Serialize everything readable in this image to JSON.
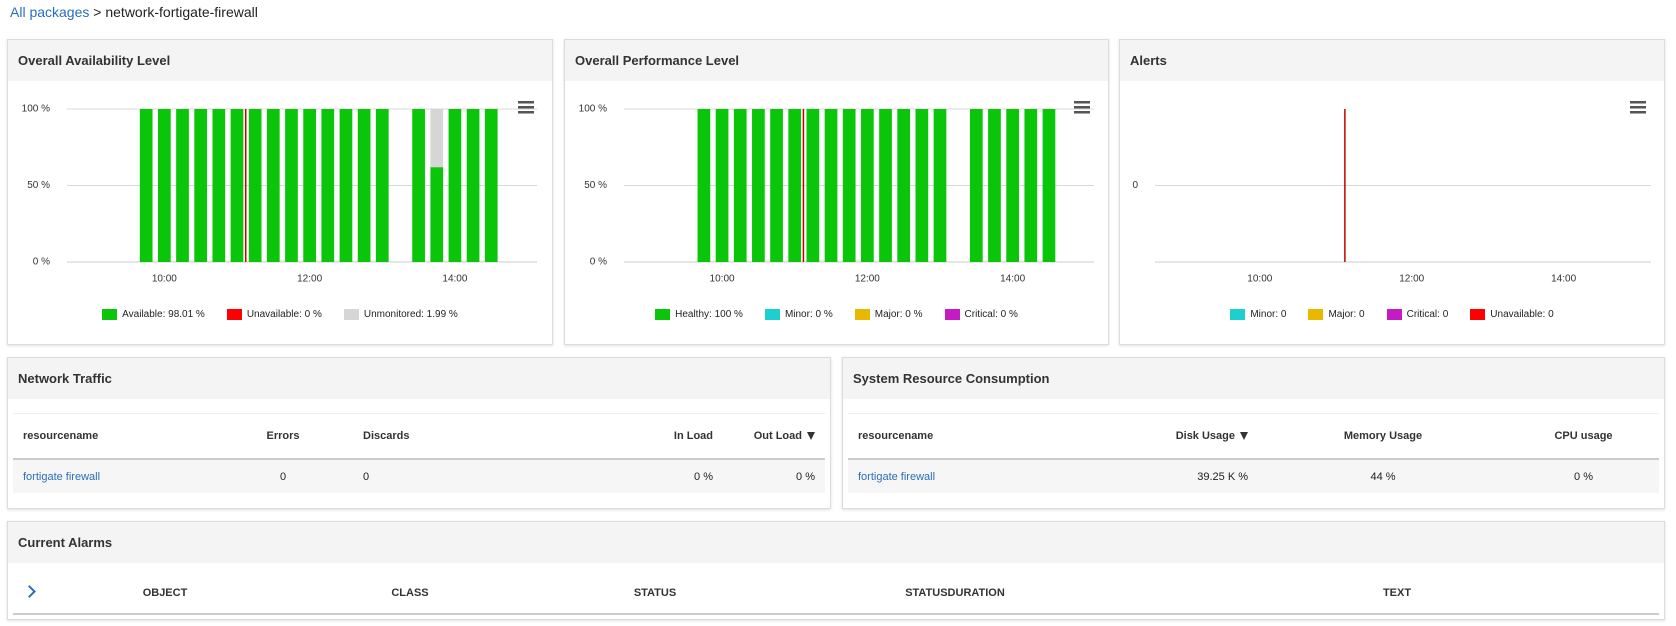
{
  "breadcrumb": {
    "link": "All packages",
    "separator": ">",
    "current": "network-fortigate-firewall"
  },
  "chart_data": [
    {
      "type": "bar",
      "title": "Overall Availability Level",
      "stacked": true,
      "grid": true,
      "x": [
        9.75,
        10,
        10.25,
        10.5,
        10.75,
        11,
        11.25,
        11.5,
        11.75,
        12,
        12.25,
        12.5,
        12.75,
        13,
        13.5,
        13.75,
        14,
        14.25,
        14.5
      ],
      "series": [
        {
          "name": "Available: 98.01 %",
          "color": "#0bc50b",
          "values": [
            100,
            100,
            100,
            100,
            100,
            100,
            100,
            100,
            100,
            100,
            100,
            100,
            100,
            100,
            100,
            62,
            100,
            100,
            100
          ]
        },
        {
          "name": "Unavailable: 0 %",
          "color": "#ff0000",
          "values": [
            0,
            0,
            0,
            0,
            0,
            0,
            0,
            0,
            0,
            0,
            0,
            0,
            0,
            0,
            0,
            0,
            0,
            0,
            0
          ]
        },
        {
          "name": "Unmonitored: 1.99 %",
          "color": "#d6d6d6",
          "values": [
            0,
            0,
            0,
            0,
            0,
            0,
            0,
            0,
            0,
            0,
            0,
            0,
            0,
            0,
            0,
            38,
            0,
            0,
            0
          ]
        }
      ],
      "xlim": [
        8.66,
        15.13
      ],
      "xticks": [
        {
          "value": 10,
          "label": "10:00"
        },
        {
          "value": 12,
          "label": "12:00"
        },
        {
          "value": 14,
          "label": "14:00"
        }
      ],
      "ylim": [
        0,
        100
      ],
      "yticks": [
        {
          "value": 0,
          "label": "0 %"
        },
        {
          "value": 50,
          "label": "50 %"
        },
        {
          "value": 100,
          "label": "100 %"
        }
      ],
      "plot_line_x": 11.12,
      "plot_line_color": "#c00000"
    },
    {
      "type": "bar",
      "title": "Overall Performance Level",
      "stacked": true,
      "grid": true,
      "x": [
        9.75,
        10,
        10.25,
        10.5,
        10.75,
        11,
        11.25,
        11.5,
        11.75,
        12,
        12.25,
        12.5,
        12.75,
        13,
        13.5,
        13.75,
        14,
        14.25,
        14.5
      ],
      "series": [
        {
          "name": "Healthy: 100 %",
          "color": "#0bc50b",
          "values": [
            100,
            100,
            100,
            100,
            100,
            100,
            100,
            100,
            100,
            100,
            100,
            100,
            100,
            100,
            100,
            100,
            100,
            100,
            100
          ]
        },
        {
          "name": "Minor: 0 %",
          "color": "#1ecfcf",
          "values": [
            0,
            0,
            0,
            0,
            0,
            0,
            0,
            0,
            0,
            0,
            0,
            0,
            0,
            0,
            0,
            0,
            0,
            0,
            0
          ]
        },
        {
          "name": "Major: 0 %",
          "color": "#e8b900",
          "values": [
            0,
            0,
            0,
            0,
            0,
            0,
            0,
            0,
            0,
            0,
            0,
            0,
            0,
            0,
            0,
            0,
            0,
            0,
            0
          ]
        },
        {
          "name": "Critical: 0 %",
          "color": "#c51bc5",
          "values": [
            0,
            0,
            0,
            0,
            0,
            0,
            0,
            0,
            0,
            0,
            0,
            0,
            0,
            0,
            0,
            0,
            0,
            0,
            0
          ]
        }
      ],
      "xlim": [
        8.65,
        15.12
      ],
      "xticks": [
        {
          "value": 10,
          "label": "10:00"
        },
        {
          "value": 12,
          "label": "12:00"
        },
        {
          "value": 14,
          "label": "14:00"
        }
      ],
      "ylim": [
        0,
        100
      ],
      "yticks": [
        {
          "value": 0,
          "label": "0 %"
        },
        {
          "value": 50,
          "label": "50 %"
        },
        {
          "value": 100,
          "label": "100 %"
        }
      ],
      "plot_line_x": 11.12,
      "plot_line_color": "#c00000"
    },
    {
      "type": "line",
      "title": "Alerts",
      "grid": true,
      "series": [
        {
          "name": "Minor: 0",
          "color": "#1ecfcf"
        },
        {
          "name": "Major: 0",
          "color": "#e8b900"
        },
        {
          "name": "Critical: 0",
          "color": "#c51bc5"
        },
        {
          "name": "Unavailable: 0",
          "color": "#ff0000"
        }
      ],
      "xlim": [
        8.62,
        15.15
      ],
      "xticks": [
        {
          "value": 10,
          "label": "10:00"
        },
        {
          "value": 12,
          "label": "12:00"
        },
        {
          "value": 14,
          "label": "14:00"
        }
      ],
      "ylim": [
        -1,
        1
      ],
      "yticks": [
        0
      ],
      "plot_line_x": 11.12,
      "plot_line_color": "#c00000"
    }
  ],
  "network_traffic": {
    "title": "Network Traffic",
    "columns": [
      "resourcename",
      "Errors",
      "Discards",
      "In Load",
      "Out Load"
    ],
    "rows": [
      [
        "fortigate firewall",
        "0",
        "0",
        "0 %",
        "0 %"
      ]
    ]
  },
  "system_resource": {
    "title": "System Resource Consumption",
    "columns": [
      "resourcename",
      "Disk Usage",
      "Memory Usage",
      "CPU usage"
    ],
    "rows": [
      [
        "fortigate firewall",
        "39.25 K %",
        "44 %",
        "0 %"
      ]
    ]
  },
  "current_alarms": {
    "title": "Current Alarms",
    "columns": [
      "OBJECT",
      "CLASS",
      "STATUS",
      "STATUSDURATION",
      "TEXT"
    ]
  }
}
